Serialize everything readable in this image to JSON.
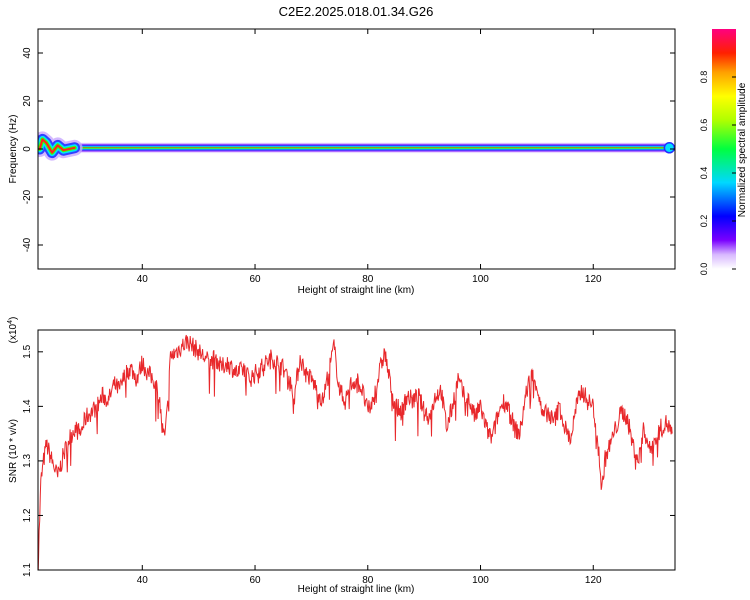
{
  "title": "C2E2.2025.018.01.34.G26",
  "chart_data": [
    {
      "type": "heatmap",
      "xlabel": "Height of straight line (km)",
      "ylabel": "Frequency (Hz)",
      "xlim": [
        21.5,
        134.5
      ],
      "ylim": [
        -50,
        50
      ],
      "x_ticks": [
        40,
        60,
        80,
        100,
        120
      ],
      "y_ticks": [
        -40,
        -20,
        0,
        20,
        40
      ],
      "colorbar": {
        "label": "Normalized spectral amplitude",
        "range": [
          0,
          1
        ],
        "ticks": [
          "0.0",
          "0.2",
          "0.4",
          "0.6",
          "0.8"
        ],
        "colormap": "rainbow (white-violet-blue-cyan-green-yellow-orange-red-magenta)"
      },
      "ridge": {
        "frequency_hz": 0.5,
        "x_start": 21.5,
        "x_end": 133.5,
        "early_wiggle": [
          {
            "x": 21.8,
            "y": 0
          },
          {
            "x": 22.3,
            "y": 4
          },
          {
            "x": 23.0,
            "y": 2.5
          },
          {
            "x": 24.0,
            "y": -1.5
          },
          {
            "x": 25.0,
            "y": 1.5
          },
          {
            "x": 26.0,
            "y": -0.5
          },
          {
            "x": 28.0,
            "y": 0.5
          }
        ]
      }
    },
    {
      "type": "line",
      "xlabel": "Height of straight line (km)",
      "ylabel": "SNR (10 * v/v)",
      "y_scale_label": "(x10^4)",
      "y_scale_base": "(x10",
      "y_scale_exp": "4",
      "xlim": [
        21.5,
        134.5
      ],
      "ylim": [
        1.1,
        1.54
      ],
      "x_ticks": [
        40,
        60,
        80,
        100,
        120
      ],
      "y_ticks": [
        1.1,
        1.2,
        1.3,
        1.4,
        1.5
      ],
      "series": [
        {
          "color": "#e8282b",
          "x": [
            21.5,
            22,
            22.5,
            23,
            24,
            25,
            26,
            27,
            28,
            29,
            30,
            31,
            32,
            33,
            34,
            35,
            36,
            37,
            38,
            39,
            40,
            41,
            42,
            43,
            43.5,
            44,
            44.5,
            45,
            46,
            47,
            48,
            49,
            50,
            51,
            52,
            53,
            54,
            55,
            56,
            57,
            58,
            59,
            60,
            61,
            62,
            63,
            64,
            65,
            66,
            67,
            68,
            69,
            70,
            71,
            72,
            73,
            74,
            75,
            76,
            77,
            78,
            79,
            80,
            81,
            82,
            83,
            84,
            85,
            86,
            87,
            88,
            89,
            90,
            91,
            92,
            93,
            94,
            95,
            96,
            97,
            98,
            99,
            100,
            101,
            102,
            103,
            104,
            105,
            106,
            107,
            108,
            109,
            110,
            111,
            112,
            113,
            114,
            115,
            116,
            117,
            118,
            119,
            120,
            121,
            121.5,
            122,
            123,
            124,
            125,
            126,
            127,
            128,
            129,
            130,
            131,
            132,
            133,
            134
          ],
          "values": [
            1.1,
            1.26,
            1.3,
            1.33,
            1.3,
            1.27,
            1.31,
            1.34,
            1.36,
            1.35,
            1.38,
            1.39,
            1.4,
            1.42,
            1.41,
            1.44,
            1.43,
            1.46,
            1.47,
            1.45,
            1.48,
            1.46,
            1.45,
            1.42,
            1.36,
            1.34,
            1.4,
            1.49,
            1.5,
            1.51,
            1.52,
            1.51,
            1.5,
            1.49,
            1.48,
            1.49,
            1.47,
            1.48,
            1.47,
            1.46,
            1.47,
            1.45,
            1.46,
            1.47,
            1.48,
            1.49,
            1.48,
            1.47,
            1.45,
            1.42,
            1.49,
            1.46,
            1.45,
            1.43,
            1.41,
            1.46,
            1.51,
            1.43,
            1.41,
            1.44,
            1.45,
            1.43,
            1.39,
            1.41,
            1.46,
            1.5,
            1.44,
            1.4,
            1.39,
            1.42,
            1.41,
            1.42,
            1.39,
            1.38,
            1.42,
            1.43,
            1.36,
            1.4,
            1.45,
            1.42,
            1.41,
            1.38,
            1.4,
            1.36,
            1.34,
            1.38,
            1.41,
            1.4,
            1.36,
            1.35,
            1.42,
            1.46,
            1.44,
            1.38,
            1.39,
            1.37,
            1.4,
            1.36,
            1.34,
            1.4,
            1.43,
            1.41,
            1.4,
            1.32,
            1.24,
            1.3,
            1.33,
            1.36,
            1.39,
            1.38,
            1.33,
            1.3,
            1.36,
            1.32,
            1.34,
            1.36,
            1.37,
            1.35
          ]
        }
      ]
    }
  ],
  "colors": {
    "line": "#e8282b",
    "axis": "#000000",
    "background": "#ffffff"
  }
}
